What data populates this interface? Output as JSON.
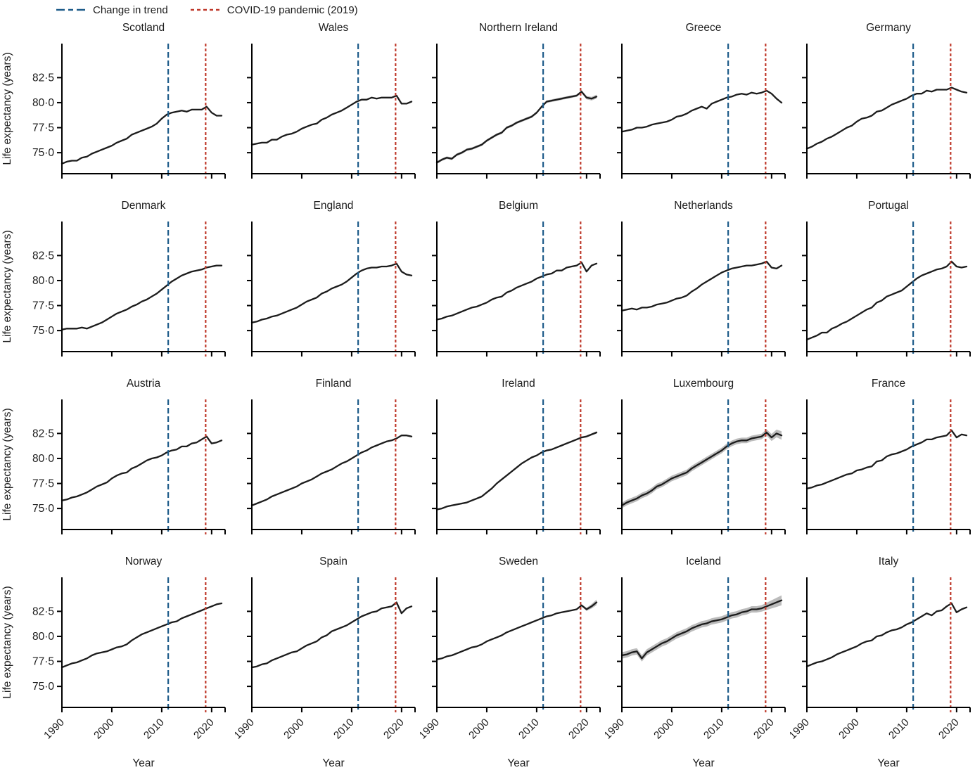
{
  "legend": {
    "items": [
      {
        "name": "change-in-trend",
        "label": "Change in trend",
        "color": "#1e5c8a",
        "dash": "12 5 7 5"
      },
      {
        "name": "covid-pandemic",
        "label": "COVID-19 pandemic (2019)",
        "color": "#bf392b",
        "dash": "5 4"
      }
    ]
  },
  "chart_data": {
    "type": "line",
    "title": "",
    "xlabel": "Year",
    "ylabel": "Life expectancy (years)",
    "layout": {
      "rows": 4,
      "cols": 5,
      "legend_position": "top-left",
      "grid": false
    },
    "xlim": [
      1990,
      2022.7
    ],
    "ylim": [
      72.9,
      85.9
    ],
    "x_ticks": [
      1990,
      2000,
      2010,
      2020
    ],
    "y_ticks": [
      {
        "value": 82.5,
        "label": "82·5"
      },
      {
        "value": 80.0,
        "label": "80·0"
      },
      {
        "value": 77.5,
        "label": "77·5"
      },
      {
        "value": 75.0,
        "label": "75·0"
      }
    ],
    "vlines": [
      {
        "name": "change-in-trend",
        "x": 2011.3,
        "color": "#1e5c8a",
        "dash": "8 4",
        "label": "Change in trend"
      },
      {
        "name": "covid-pandemic",
        "x": 2018.8,
        "color": "#bf392b",
        "dash": "4 3",
        "label": "COVID-19 pandemic (2019)"
      }
    ],
    "line_color": "#1c1c1c",
    "ci_color": "#bcbcbc",
    "x": [
      1990,
      1991,
      1992,
      1993,
      1994,
      1995,
      1996,
      1997,
      1998,
      1999,
      2000,
      2001,
      2002,
      2003,
      2004,
      2005,
      2006,
      2007,
      2008,
      2009,
      2010,
      2011,
      2012,
      2013,
      2014,
      2015,
      2016,
      2017,
      2018,
      2019,
      2020,
      2021,
      2022
    ],
    "series": [
      {
        "name": "Scotland",
        "ci": 0.07,
        "ci_end": 0.07,
        "values": [
          73.9,
          74.1,
          74.2,
          74.2,
          74.5,
          74.6,
          74.9,
          75.1,
          75.3,
          75.5,
          75.7,
          76.0,
          76.2,
          76.4,
          76.8,
          77.0,
          77.2,
          77.4,
          77.6,
          77.9,
          78.4,
          78.8,
          79.0,
          79.1,
          79.2,
          79.1,
          79.3,
          79.3,
          79.3,
          79.6,
          79.0,
          78.7,
          78.7
        ]
      },
      {
        "name": "Wales",
        "ci": 0.07,
        "ci_end": 0.07,
        "values": [
          75.8,
          75.9,
          76.0,
          76.0,
          76.3,
          76.3,
          76.6,
          76.8,
          76.9,
          77.1,
          77.4,
          77.6,
          77.8,
          77.9,
          78.3,
          78.5,
          78.8,
          79.0,
          79.2,
          79.5,
          79.8,
          80.1,
          80.3,
          80.3,
          80.5,
          80.4,
          80.5,
          80.5,
          80.5,
          80.7,
          79.9,
          79.9,
          80.1
        ]
      },
      {
        "name": "Northern Ireland",
        "ci": 0.13,
        "ci_end": 0.2,
        "values": [
          74.0,
          74.3,
          74.5,
          74.4,
          74.8,
          75.0,
          75.3,
          75.4,
          75.6,
          75.8,
          76.2,
          76.5,
          76.8,
          77.0,
          77.5,
          77.7,
          78.0,
          78.2,
          78.4,
          78.6,
          79.0,
          79.6,
          80.1,
          80.2,
          80.3,
          80.4,
          80.5,
          80.6,
          80.7,
          81.1,
          80.5,
          80.4,
          80.6
        ]
      },
      {
        "name": "Greece",
        "ci": 0.04,
        "ci_end": 0.04,
        "values": [
          77.1,
          77.2,
          77.3,
          77.5,
          77.5,
          77.6,
          77.8,
          77.9,
          78.0,
          78.1,
          78.3,
          78.6,
          78.7,
          78.9,
          79.2,
          79.4,
          79.6,
          79.4,
          79.9,
          80.1,
          80.3,
          80.5,
          80.6,
          80.8,
          80.9,
          80.8,
          81.0,
          80.9,
          81.0,
          81.2,
          80.9,
          80.4,
          80.0
        ]
      },
      {
        "name": "Germany",
        "ci": 0.03,
        "ci_end": 0.03,
        "values": [
          75.4,
          75.6,
          75.9,
          76.1,
          76.4,
          76.6,
          76.9,
          77.2,
          77.5,
          77.7,
          78.1,
          78.4,
          78.5,
          78.7,
          79.1,
          79.2,
          79.5,
          79.8,
          80.0,
          80.2,
          80.4,
          80.7,
          80.9,
          80.9,
          81.2,
          81.1,
          81.3,
          81.3,
          81.3,
          81.5,
          81.3,
          81.1,
          81.0
        ]
      },
      {
        "name": "Denmark",
        "ci": 0.07,
        "ci_end": 0.07,
        "values": [
          75.1,
          75.2,
          75.2,
          75.2,
          75.3,
          75.2,
          75.4,
          75.6,
          75.8,
          76.1,
          76.4,
          76.7,
          76.9,
          77.1,
          77.4,
          77.6,
          77.9,
          78.1,
          78.4,
          78.7,
          79.1,
          79.5,
          79.9,
          80.2,
          80.5,
          80.7,
          80.9,
          81.0,
          81.1,
          81.3,
          81.4,
          81.5,
          81.5
        ]
      },
      {
        "name": "England",
        "ci": 0.03,
        "ci_end": 0.03,
        "values": [
          75.8,
          75.9,
          76.1,
          76.2,
          76.4,
          76.5,
          76.7,
          76.9,
          77.1,
          77.3,
          77.6,
          77.9,
          78.1,
          78.3,
          78.7,
          78.9,
          79.2,
          79.4,
          79.6,
          79.9,
          80.3,
          80.7,
          81.0,
          81.2,
          81.3,
          81.3,
          81.4,
          81.4,
          81.5,
          81.7,
          80.9,
          80.6,
          80.5
        ]
      },
      {
        "name": "Belgium",
        "ci": 0.04,
        "ci_end": 0.04,
        "values": [
          76.1,
          76.2,
          76.4,
          76.5,
          76.7,
          76.9,
          77.1,
          77.3,
          77.4,
          77.6,
          77.8,
          78.1,
          78.3,
          78.4,
          78.8,
          79.0,
          79.3,
          79.5,
          79.7,
          79.9,
          80.2,
          80.4,
          80.6,
          80.7,
          81.0,
          81.0,
          81.3,
          81.4,
          81.5,
          81.8,
          80.9,
          81.5,
          81.7
        ]
      },
      {
        "name": "Netherlands",
        "ci": 0.03,
        "ci_end": 0.03,
        "values": [
          77.0,
          77.1,
          77.2,
          77.1,
          77.3,
          77.3,
          77.4,
          77.6,
          77.7,
          77.8,
          78.0,
          78.2,
          78.3,
          78.5,
          78.9,
          79.2,
          79.6,
          79.9,
          80.2,
          80.5,
          80.8,
          81.0,
          81.2,
          81.3,
          81.4,
          81.5,
          81.5,
          81.6,
          81.7,
          81.9,
          81.3,
          81.2,
          81.5
        ]
      },
      {
        "name": "Portugal",
        "ci": 0.04,
        "ci_end": 0.04,
        "values": [
          74.1,
          74.3,
          74.5,
          74.8,
          74.8,
          75.2,
          75.4,
          75.7,
          75.9,
          76.2,
          76.5,
          76.8,
          77.1,
          77.3,
          77.8,
          78.0,
          78.4,
          78.6,
          78.8,
          79.0,
          79.4,
          79.8,
          80.2,
          80.5,
          80.7,
          80.9,
          81.1,
          81.2,
          81.4,
          81.9,
          81.4,
          81.3,
          81.4
        ]
      },
      {
        "name": "Austria",
        "ci": 0.05,
        "ci_end": 0.05,
        "values": [
          75.8,
          75.9,
          76.1,
          76.2,
          76.4,
          76.6,
          76.9,
          77.2,
          77.4,
          77.6,
          78.0,
          78.3,
          78.5,
          78.6,
          79.0,
          79.2,
          79.5,
          79.8,
          80.0,
          80.1,
          80.3,
          80.6,
          80.8,
          80.9,
          81.2,
          81.2,
          81.5,
          81.6,
          81.9,
          82.2,
          81.5,
          81.6,
          81.8
        ]
      },
      {
        "name": "Finland",
        "ci": 0.07,
        "ci_end": 0.09,
        "values": [
          75.3,
          75.5,
          75.7,
          75.9,
          76.2,
          76.4,
          76.6,
          76.8,
          77.0,
          77.2,
          77.5,
          77.7,
          77.9,
          78.2,
          78.5,
          78.7,
          78.9,
          79.2,
          79.5,
          79.7,
          80.0,
          80.3,
          80.6,
          80.8,
          81.1,
          81.3,
          81.5,
          81.7,
          81.8,
          82.0,
          82.3,
          82.3,
          82.2
        ]
      },
      {
        "name": "Ireland",
        "ci": 0.08,
        "ci_end": 0.12,
        "values": [
          74.9,
          75.0,
          75.2,
          75.3,
          75.4,
          75.5,
          75.6,
          75.8,
          76.0,
          76.2,
          76.6,
          77.0,
          77.5,
          77.9,
          78.3,
          78.7,
          79.1,
          79.5,
          79.8,
          80.1,
          80.3,
          80.6,
          80.8,
          80.9,
          81.1,
          81.3,
          81.5,
          81.7,
          81.9,
          82.1,
          82.2,
          82.4,
          82.6
        ]
      },
      {
        "name": "Luxembourg",
        "ci": 0.28,
        "ci_end": 0.42,
        "values": [
          75.3,
          75.6,
          75.8,
          76.0,
          76.3,
          76.5,
          76.8,
          77.2,
          77.4,
          77.7,
          78.0,
          78.2,
          78.4,
          78.6,
          79.0,
          79.3,
          79.6,
          79.9,
          80.2,
          80.5,
          80.8,
          81.2,
          81.5,
          81.7,
          81.8,
          81.8,
          82.0,
          82.1,
          82.2,
          82.6,
          82.1,
          82.5,
          82.3
        ]
      },
      {
        "name": "France",
        "ci": 0.03,
        "ci_end": 0.03,
        "values": [
          77.0,
          77.1,
          77.3,
          77.4,
          77.6,
          77.8,
          78.0,
          78.2,
          78.4,
          78.5,
          78.8,
          78.9,
          79.1,
          79.2,
          79.7,
          79.8,
          80.2,
          80.4,
          80.5,
          80.7,
          80.9,
          81.2,
          81.4,
          81.6,
          81.9,
          81.9,
          82.1,
          82.2,
          82.3,
          82.8,
          82.1,
          82.4,
          82.3
        ]
      },
      {
        "name": "Norway",
        "ci": 0.06,
        "ci_end": 0.06,
        "values": [
          76.9,
          77.1,
          77.3,
          77.4,
          77.6,
          77.8,
          78.1,
          78.3,
          78.4,
          78.5,
          78.7,
          78.9,
          79.0,
          79.2,
          79.6,
          79.9,
          80.2,
          80.4,
          80.6,
          80.8,
          81.0,
          81.2,
          81.4,
          81.5,
          81.8,
          82.0,
          82.2,
          82.4,
          82.6,
          82.8,
          83.0,
          83.2,
          83.3
        ]
      },
      {
        "name": "Spain",
        "ci": 0.03,
        "ci_end": 0.03,
        "values": [
          76.9,
          77.0,
          77.2,
          77.3,
          77.6,
          77.8,
          78.0,
          78.2,
          78.4,
          78.5,
          78.8,
          79.1,
          79.3,
          79.5,
          79.9,
          80.1,
          80.5,
          80.7,
          80.9,
          81.1,
          81.4,
          81.7,
          82.0,
          82.2,
          82.4,
          82.5,
          82.8,
          82.9,
          83.0,
          83.4,
          82.3,
          82.8,
          83.0
        ]
      },
      {
        "name": "Sweden",
        "ci": 0.04,
        "ci_end": 0.28,
        "values": [
          77.7,
          77.8,
          78.0,
          78.1,
          78.3,
          78.5,
          78.7,
          78.9,
          79.0,
          79.2,
          79.5,
          79.7,
          79.9,
          80.1,
          80.4,
          80.6,
          80.8,
          81.0,
          81.2,
          81.4,
          81.6,
          81.8,
          82.0,
          82.1,
          82.3,
          82.4,
          82.5,
          82.6,
          82.7,
          83.1,
          82.7,
          83.0,
          83.4
        ]
      },
      {
        "name": "Iceland",
        "ci": 0.32,
        "ci_end": 0.5,
        "values": [
          78.1,
          78.2,
          78.4,
          78.5,
          77.8,
          78.4,
          78.7,
          79.0,
          79.3,
          79.5,
          79.8,
          80.1,
          80.3,
          80.5,
          80.8,
          81.0,
          81.2,
          81.3,
          81.5,
          81.6,
          81.7,
          81.9,
          82.1,
          82.2,
          82.4,
          82.5,
          82.7,
          82.7,
          82.8,
          83.0,
          83.2,
          83.4,
          83.6
        ]
      },
      {
        "name": "Italy",
        "ci": 0.03,
        "ci_end": 0.03,
        "values": [
          77.0,
          77.2,
          77.4,
          77.5,
          77.7,
          77.9,
          78.2,
          78.4,
          78.6,
          78.8,
          79.0,
          79.3,
          79.5,
          79.6,
          80.0,
          80.1,
          80.4,
          80.6,
          80.7,
          80.9,
          81.2,
          81.4,
          81.7,
          82.0,
          82.3,
          82.1,
          82.5,
          82.6,
          83.0,
          83.3,
          82.4,
          82.7,
          82.9
        ]
      }
    ]
  }
}
